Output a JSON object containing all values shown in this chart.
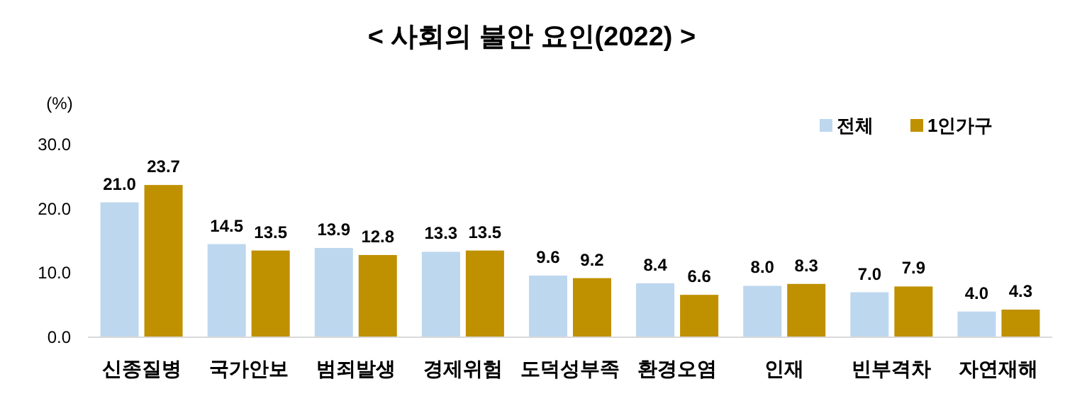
{
  "chart_data": {
    "type": "bar",
    "title": "< 사회의 불안 요인(2022) >",
    "ylabel": "(%)",
    "categories": [
      "신종질병",
      "국가안보",
      "범죄발생",
      "경제위험",
      "도덕성부족",
      "환경오염",
      "인재",
      "빈부격차",
      "자연재해"
    ],
    "series": [
      {
        "name": "전체",
        "color": "#bdd7ee",
        "values": [
          21.0,
          14.5,
          13.9,
          13.3,
          9.6,
          8.4,
          8.0,
          7.0,
          4.0
        ],
        "value_labels": [
          "21.0",
          "14.5",
          "13.9",
          "13.3",
          "9.6",
          "8.4",
          "8.0",
          "7.0",
          "4.0"
        ]
      },
      {
        "name": "1인가구",
        "color": "#bf9000",
        "values": [
          23.7,
          13.5,
          12.8,
          13.5,
          9.2,
          6.6,
          8.3,
          7.9,
          4.3
        ],
        "value_labels": [
          "23.7",
          "13.5",
          "12.8",
          "13.5",
          "9.2",
          "6.6",
          "8.3",
          "7.9",
          "4.3"
        ]
      }
    ],
    "ylim": [
      0,
      30
    ],
    "yticks": [
      {
        "value": 0,
        "label": "0.0"
      },
      {
        "value": 10,
        "label": "10.0"
      },
      {
        "value": 20,
        "label": "20.0"
      },
      {
        "value": 30,
        "label": "30.0"
      }
    ],
    "grid": false,
    "legend": "top right"
  }
}
